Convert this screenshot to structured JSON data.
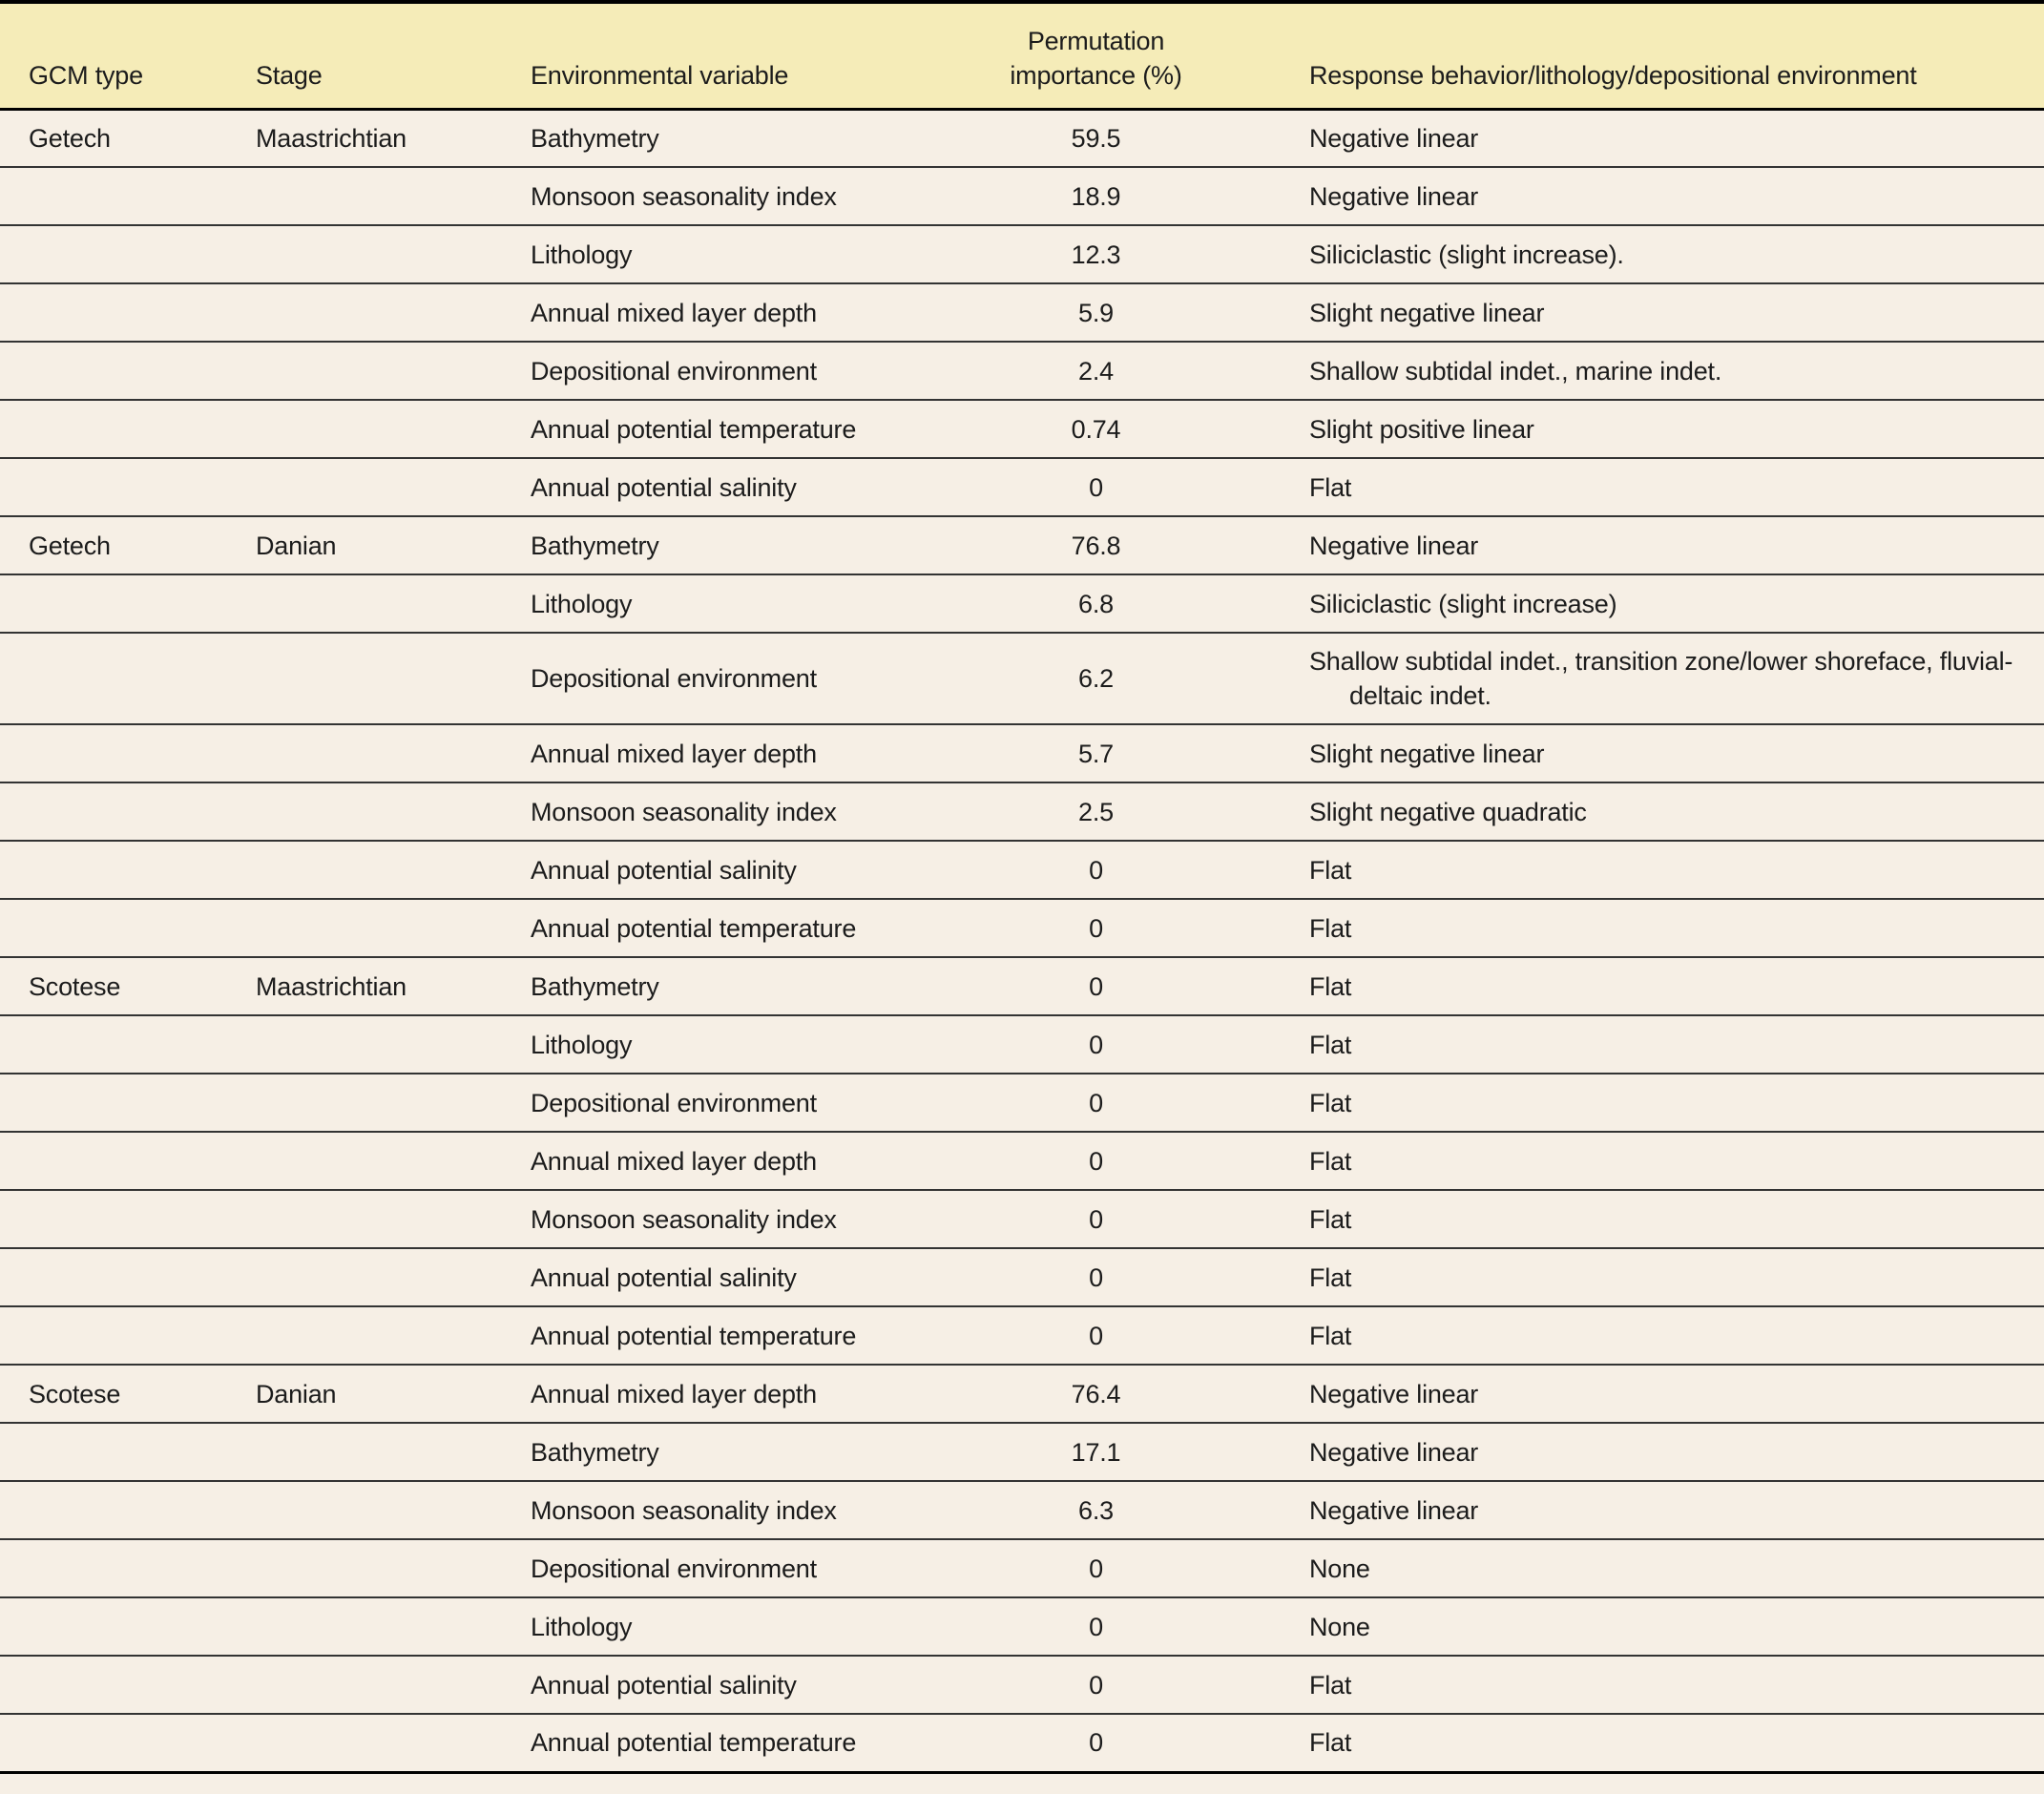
{
  "table": {
    "headers": {
      "gcm_type": "GCM type",
      "stage": "Stage",
      "environmental_variable": "Environmental variable",
      "permutation_importance_line1": "Permutation",
      "permutation_importance_line2": "importance (%)",
      "response_behavior": "Response behavior/lithology/depositional environment"
    },
    "rows": [
      {
        "gcm": "Getech",
        "stage": "Maastrichtian",
        "variable": "Bathymetry",
        "importance": "59.5",
        "response": "Negative linear"
      },
      {
        "gcm": "",
        "stage": "",
        "variable": "Monsoon seasonality index",
        "importance": "18.9",
        "response": "Negative linear"
      },
      {
        "gcm": "",
        "stage": "",
        "variable": "Lithology",
        "importance": "12.3",
        "response": "Siliciclastic (slight increase)."
      },
      {
        "gcm": "",
        "stage": "",
        "variable": "Annual mixed layer depth",
        "importance": "5.9",
        "response": "Slight negative linear"
      },
      {
        "gcm": "",
        "stage": "",
        "variable": "Depositional environment",
        "importance": "2.4",
        "response": "Shallow subtidal indet., marine indet."
      },
      {
        "gcm": "",
        "stage": "",
        "variable": "Annual potential temperature",
        "importance": "0.74",
        "response": "Slight positive linear"
      },
      {
        "gcm": "",
        "stage": "",
        "variable": "Annual potential salinity",
        "importance": "0",
        "response": "Flat"
      },
      {
        "gcm": "Getech",
        "stage": "Danian",
        "variable": "Bathymetry",
        "importance": "76.8",
        "response": "Negative linear"
      },
      {
        "gcm": "",
        "stage": "",
        "variable": "Lithology",
        "importance": "6.8",
        "response": "Siliciclastic (slight increase)"
      },
      {
        "gcm": "",
        "stage": "",
        "variable": "Depositional environment",
        "importance": "6.2",
        "response": "Shallow subtidal indet., transition zone/lower shoreface, fluvial-deltaic indet."
      },
      {
        "gcm": "",
        "stage": "",
        "variable": "Annual mixed layer depth",
        "importance": "5.7",
        "response": "Slight negative linear"
      },
      {
        "gcm": "",
        "stage": "",
        "variable": "Monsoon seasonality index",
        "importance": "2.5",
        "response": "Slight negative quadratic"
      },
      {
        "gcm": "",
        "stage": "",
        "variable": "Annual potential salinity",
        "importance": "0",
        "response": "Flat"
      },
      {
        "gcm": "",
        "stage": "",
        "variable": "Annual potential temperature",
        "importance": "0",
        "response": "Flat"
      },
      {
        "gcm": "Scotese",
        "stage": "Maastrichtian",
        "variable": "Bathymetry",
        "importance": "0",
        "response": "Flat"
      },
      {
        "gcm": "",
        "stage": "",
        "variable": "Lithology",
        "importance": "0",
        "response": "Flat"
      },
      {
        "gcm": "",
        "stage": "",
        "variable": "Depositional environment",
        "importance": "0",
        "response": "Flat"
      },
      {
        "gcm": "",
        "stage": "",
        "variable": "Annual mixed layer depth",
        "importance": "0",
        "response": "Flat"
      },
      {
        "gcm": "",
        "stage": "",
        "variable": "Monsoon seasonality index",
        "importance": "0",
        "response": "Flat"
      },
      {
        "gcm": "",
        "stage": "",
        "variable": "Annual potential salinity",
        "importance": "0",
        "response": "Flat"
      },
      {
        "gcm": "",
        "stage": "",
        "variable": "Annual potential temperature",
        "importance": "0",
        "response": "Flat"
      },
      {
        "gcm": "Scotese",
        "stage": "Danian",
        "variable": "Annual mixed layer depth",
        "importance": "76.4",
        "response": "Negative linear"
      },
      {
        "gcm": "",
        "stage": "",
        "variable": "Bathymetry",
        "importance": "17.1",
        "response": "Negative linear"
      },
      {
        "gcm": "",
        "stage": "",
        "variable": "Monsoon seasonality index",
        "importance": "6.3",
        "response": "Negative linear"
      },
      {
        "gcm": "",
        "stage": "",
        "variable": "Depositional environment",
        "importance": "0",
        "response": "None"
      },
      {
        "gcm": "",
        "stage": "",
        "variable": "Lithology",
        "importance": "0",
        "response": "None"
      },
      {
        "gcm": "",
        "stage": "",
        "variable": "Annual potential salinity",
        "importance": "0",
        "response": "Flat"
      },
      {
        "gcm": "",
        "stage": "",
        "variable": "Annual potential temperature",
        "importance": "0",
        "response": "Flat"
      }
    ],
    "row_fields": [
      "gcm",
      "stage",
      "variable",
      "importance",
      "response"
    ]
  },
  "colors": {
    "header_background": "#f5ecb8",
    "row_background": "#f6efe5",
    "row_rule": "#333333",
    "frame": "#000000",
    "text": "#1c1c1c"
  }
}
